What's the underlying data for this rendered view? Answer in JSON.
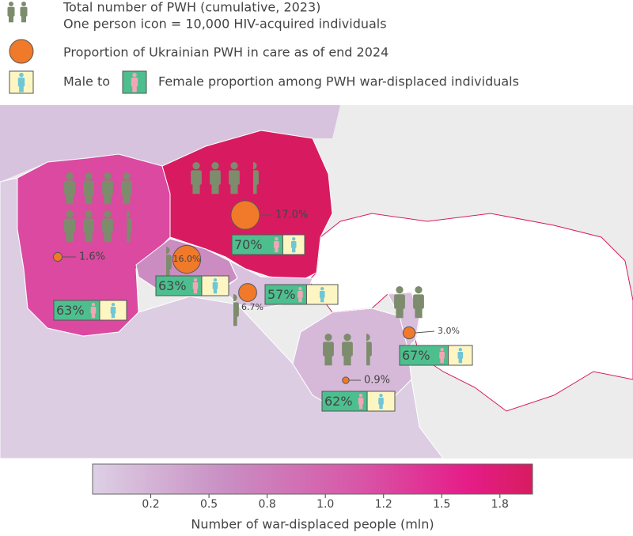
{
  "legend": {
    "total_pwh": "Total number of PWH (cumulative, 2023)",
    "icon_note": "One person icon = 10,000 HIV-acquired individuals",
    "in_care": "Proportion of Ukrainian PWH in care as of end 2024",
    "male_to": "Male to",
    "female": "Female proportion among PWH war-displaced individuals"
  },
  "regions": [
    {
      "displaced": 1.25,
      "icons": 7.5,
      "in_care": {
        "value": 1.6,
        "label": "1.6%"
      },
      "female_share": {
        "value": 63,
        "label": "63%"
      }
    },
    {
      "displaced": 1.89,
      "icons": 3.5,
      "in_care": {
        "value": 17.0,
        "label": "17.0%"
      },
      "female_share": {
        "value": 70,
        "label": "70%"
      }
    },
    {
      "displaced": 0.6,
      "icons": 0.5,
      "in_care": {
        "value": 16.0,
        "label": "16.0%"
      },
      "female_share": {
        "value": 63,
        "label": "63%"
      }
    },
    {
      "displaced": 0.12,
      "icons": 0.5,
      "in_care": {
        "value": 6.7,
        "label": "6.7%"
      },
      "female_share": {
        "value": 57,
        "label": "57%"
      }
    },
    {
      "displaced": 0.15,
      "icons": 2,
      "in_care": {
        "value": 3.0,
        "label": "3.0%"
      },
      "female_share": {
        "value": 67,
        "label": "67%"
      }
    },
    {
      "displaced": 0.2,
      "icons": 2.5,
      "in_care": {
        "value": 0.9,
        "label": "0.9%"
      },
      "female_share": {
        "value": 62,
        "label": "62%"
      }
    }
  ],
  "colorbar": {
    "label": "Number of war-displaced people (mln)",
    "lim": [
      0,
      1.89
    ],
    "ticks": [
      {
        "value": 0.25,
        "label": "0.2"
      },
      {
        "value": 0.5,
        "label": "0.5"
      },
      {
        "value": 0.75,
        "label": "0.8"
      },
      {
        "value": 1.0,
        "label": "1.0"
      },
      {
        "value": 1.25,
        "label": "1.2"
      },
      {
        "value": 1.5,
        "label": "1.5"
      },
      {
        "value": 1.75,
        "label": "1.8"
      }
    ]
  }
}
